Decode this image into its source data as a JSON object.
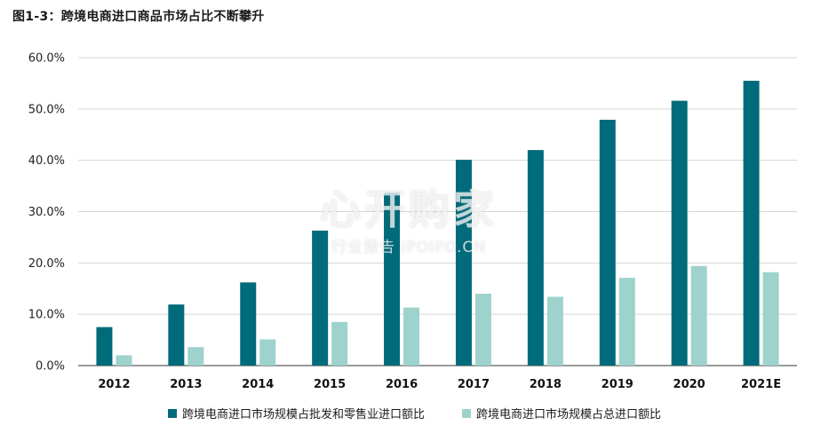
{
  "title": "图1-3：跨境电商进口商品市场占比不断攀升",
  "watermark": {
    "main": "心开购家",
    "sub": "行业报告 IPOIPO.CN"
  },
  "colors": {
    "series1": "#006b7a",
    "series2": "#9dd2cd",
    "grid": "#d4d4d4",
    "axis": "#333333"
  },
  "chart_data": {
    "type": "bar",
    "categories": [
      "2012",
      "2013",
      "2014",
      "2015",
      "2016",
      "2017",
      "2018",
      "2019",
      "2020",
      "2021E"
    ],
    "series": [
      {
        "name": "跨境电商进口市场规模占批发和零售业进口额比",
        "values": [
          7.5,
          11.9,
          16.2,
          26.3,
          33.7,
          40.1,
          42.0,
          47.9,
          51.6,
          55.5
        ],
        "color": "#006b7a"
      },
      {
        "name": "跨境电商进口市场规模占总进口额比",
        "values": [
          2.0,
          3.6,
          5.1,
          8.5,
          11.3,
          14.0,
          13.4,
          17.1,
          19.4,
          18.2
        ],
        "color": "#9dd2cd"
      }
    ],
    "yticks": [
      "0.0%",
      "10.0%",
      "20.0%",
      "30.0%",
      "40.0%",
      "50.0%",
      "60.0%"
    ],
    "ylim": [
      0,
      60
    ],
    "grid": true,
    "legend_position": "bottom"
  }
}
